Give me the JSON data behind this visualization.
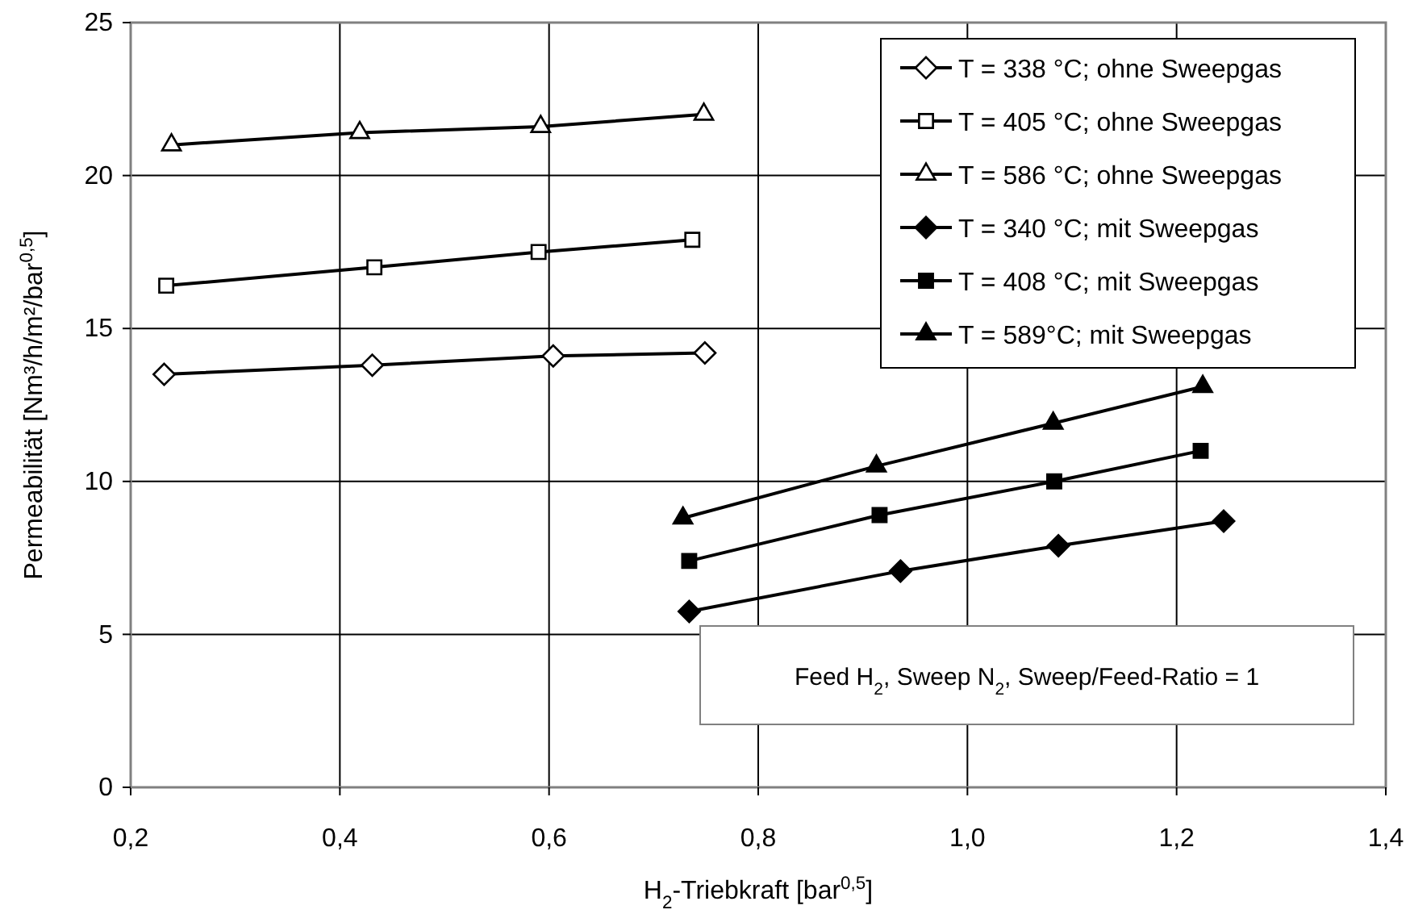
{
  "chart_data": {
    "type": "line",
    "xlabel": "H$_{2}$-Triebkraft [bar$^{0,5}$]",
    "ylabel": "Permeabilität [Nm³/h/m²/bar$^{0,5}$]",
    "xlim": [
      0.2,
      1.4
    ],
    "xticks": [
      {
        "value": 0.2,
        "label": "0,2"
      },
      {
        "value": 0.4,
        "label": "0,4"
      },
      {
        "value": 0.6,
        "label": "0,6"
      },
      {
        "value": 0.8,
        "label": "0,8"
      },
      {
        "value": 1.0,
        "label": "1,0"
      },
      {
        "value": 1.2,
        "label": "1,2"
      },
      {
        "value": 1.4,
        "label": "1,4"
      }
    ],
    "ylim": [
      0,
      25
    ],
    "yticks": [
      0,
      5,
      10,
      15,
      20,
      25
    ],
    "grid": true,
    "legend": "top right",
    "line_style": "solid",
    "annotations": [
      "Feed H$_{2}$, Sweep N$_{2}$, Sweep/Feed-Ratio = 1"
    ],
    "series": [
      {
        "name": "T = 338 °C; ohne Sweepgas",
        "color": "#000000",
        "marker": "diamond-open",
        "x": [
          0.232,
          0.431,
          0.604,
          0.749
        ],
        "values": [
          13.5,
          13.8,
          14.1,
          14.2
        ]
      },
      {
        "name": "T = 405 °C; ohne Sweepgas",
        "color": "#000000",
        "marker": "square-open",
        "x": [
          0.234,
          0.433,
          0.59,
          0.737
        ],
        "values": [
          16.4,
          17.0,
          17.5,
          17.9
        ]
      },
      {
        "name": "T = 586 °C; ohne Sweepgas",
        "color": "#000000",
        "marker": "triangle-open",
        "x": [
          0.239,
          0.419,
          0.592,
          0.748
        ],
        "values": [
          21.0,
          21.4,
          21.6,
          22.0
        ]
      },
      {
        "name": "T = 340 °C; mit Sweepgas",
        "color": "#000000",
        "marker": "diamond",
        "x": [
          0.734,
          0.936,
          1.087,
          1.245
        ],
        "values": [
          5.75,
          7.07,
          7.9,
          8.7
        ]
      },
      {
        "name": "T = 408 °C; mit Sweepgas",
        "color": "#000000",
        "marker": "square",
        "x": [
          0.734,
          0.916,
          1.083,
          1.223
        ],
        "values": [
          7.4,
          8.9,
          10.0,
          11.0
        ]
      },
      {
        "name": "T = 589°C; mit Sweepgas",
        "color": "#000000",
        "marker": "triangle",
        "x": [
          0.728,
          0.913,
          1.082,
          1.225
        ],
        "values": [
          8.8,
          10.5,
          11.9,
          13.1
        ]
      }
    ]
  }
}
